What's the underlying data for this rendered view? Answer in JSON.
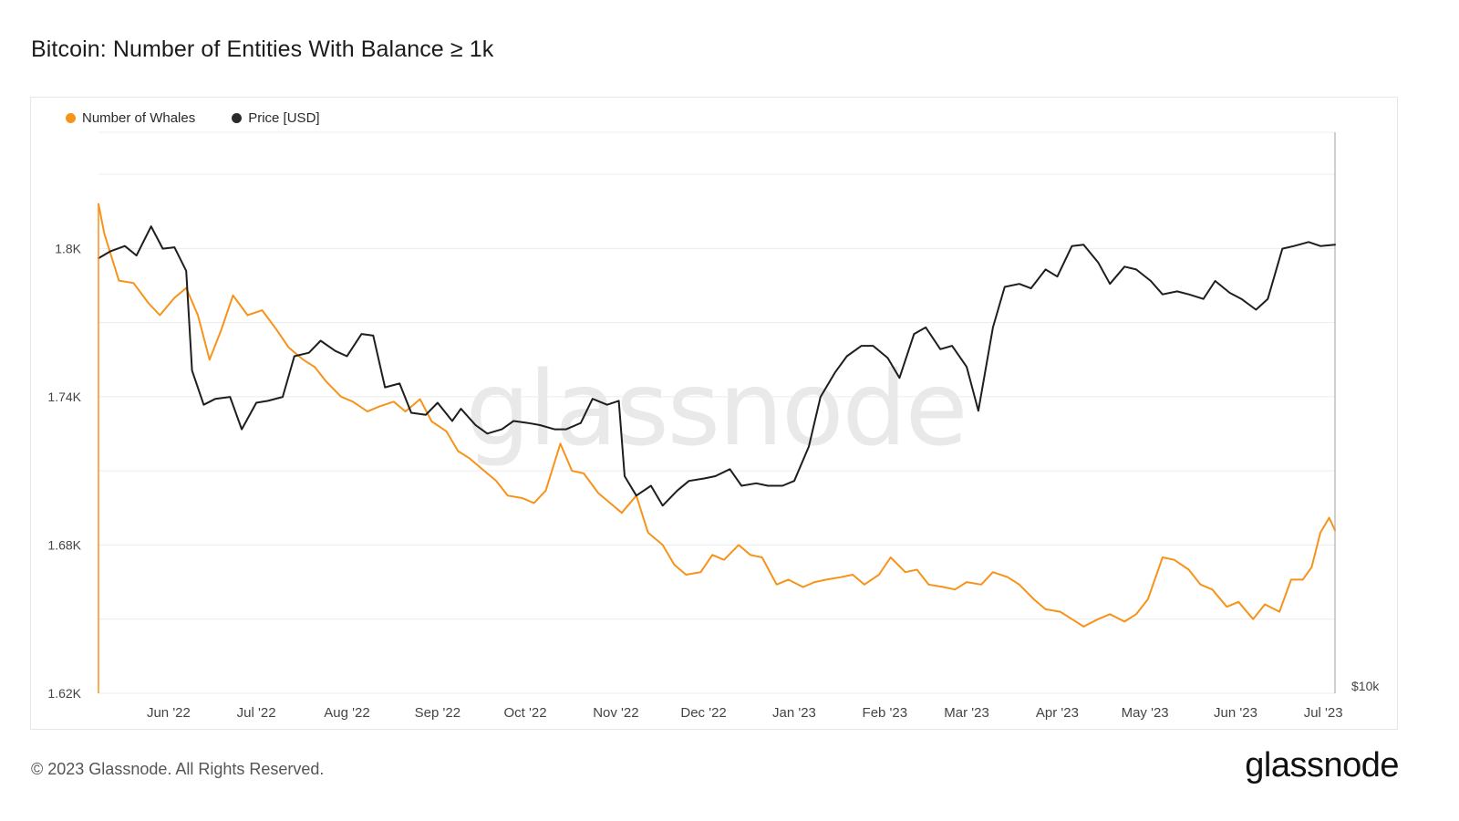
{
  "title": "Bitcoin: Number of Entities With Balance ≥ 1k",
  "footer": "© 2023 Glassnode. All Rights Reserved.",
  "logo": "glassnode",
  "watermark": "glassnode",
  "colors": {
    "whales": "#f7931a",
    "price": "#1e1e1e",
    "grid": "#ececec",
    "axis_text": "#444444"
  },
  "legend": [
    {
      "label": "Number of Whales",
      "color": "#f7931a"
    },
    {
      "label": "Price [USD]",
      "color": "#2a2a2a"
    }
  ],
  "chart_data": {
    "type": "line",
    "title": "Bitcoin: Number of Entities With Balance ≥ 1k",
    "y_left": {
      "ticks": [
        1620,
        1680,
        1740,
        1800
      ],
      "tick_labels": [
        "1.62K",
        "1.68K",
        "1.74K",
        "1.8K"
      ],
      "range": [
        1620,
        1847
      ]
    },
    "y_right": {
      "tick_labels": [
        "$10k"
      ],
      "scale": "log",
      "range": [
        10000,
        40000
      ]
    },
    "x": {
      "type": "date",
      "range": [
        "2022-05-13",
        "2023-07-10"
      ],
      "tick_dates": [
        "2022-06-06",
        "2022-07-06",
        "2022-08-06",
        "2022-09-06",
        "2022-10-06",
        "2022-11-06",
        "2022-12-06",
        "2023-01-06",
        "2023-02-06",
        "2023-03-06",
        "2023-04-06",
        "2023-05-06",
        "2023-06-06",
        "2023-07-06"
      ],
      "tick_labels": [
        "Jun '22",
        "Jul '22",
        "Aug '22",
        "Sep '22",
        "Oct '22",
        "Nov '22",
        "Dec '22",
        "Jan '23",
        "Feb '23",
        "Mar '23",
        "Apr '23",
        "May '23",
        "Jun '23",
        "Jul '23"
      ]
    },
    "grid": true,
    "legend_position": "top-left",
    "series": [
      {
        "name": "Number of Whales",
        "axis": "left",
        "color": "#f7931a",
        "dates": [
          "2022-05-13",
          "2022-05-15",
          "2022-05-20",
          "2022-05-25",
          "2022-05-30",
          "2022-06-03",
          "2022-06-08",
          "2022-06-12",
          "2022-06-16",
          "2022-06-20",
          "2022-06-24",
          "2022-06-28",
          "2022-07-03",
          "2022-07-08",
          "2022-07-13",
          "2022-07-17",
          "2022-07-22",
          "2022-07-26",
          "2022-07-30",
          "2022-08-04",
          "2022-08-08",
          "2022-08-13",
          "2022-08-17",
          "2022-08-22",
          "2022-08-26",
          "2022-08-31",
          "2022-09-04",
          "2022-09-09",
          "2022-09-13",
          "2022-09-17",
          "2022-09-22",
          "2022-09-26",
          "2022-09-30",
          "2022-10-05",
          "2022-10-09",
          "2022-10-13",
          "2022-10-18",
          "2022-10-22",
          "2022-10-26",
          "2022-10-31",
          "2022-11-04",
          "2022-11-08",
          "2022-11-13",
          "2022-11-17",
          "2022-11-22",
          "2022-11-26",
          "2022-11-30",
          "2022-12-05",
          "2022-12-09",
          "2022-12-13",
          "2022-12-18",
          "2022-12-22",
          "2022-12-26",
          "2022-12-31",
          "2023-01-04",
          "2023-01-09",
          "2023-01-13",
          "2023-01-17",
          "2023-01-22",
          "2023-01-26",
          "2023-01-30",
          "2023-02-04",
          "2023-02-08",
          "2023-02-13",
          "2023-02-17",
          "2023-02-21",
          "2023-02-26",
          "2023-03-02",
          "2023-03-06",
          "2023-03-11",
          "2023-03-15",
          "2023-03-20",
          "2023-03-24",
          "2023-03-29",
          "2023-04-02",
          "2023-04-07",
          "2023-04-11",
          "2023-04-15",
          "2023-04-20",
          "2023-04-24",
          "2023-04-29",
          "2023-05-03",
          "2023-05-07",
          "2023-05-12",
          "2023-05-16",
          "2023-05-21",
          "2023-05-25",
          "2023-05-29",
          "2023-06-03",
          "2023-06-07",
          "2023-06-12",
          "2023-06-16",
          "2023-06-21",
          "2023-06-25",
          "2023-06-29",
          "2023-07-02",
          "2023-07-05",
          "2023-07-08",
          "2023-07-10"
        ],
        "values": [
          1818,
          1806,
          1787,
          1786,
          1778,
          1773,
          1780,
          1784,
          1773,
          1755,
          1767,
          1781,
          1773,
          1775,
          1767,
          1760,
          1755,
          1752,
          1746,
          1740,
          1738,
          1734,
          1736,
          1738,
          1734,
          1739,
          1730,
          1726,
          1718,
          1715,
          1710,
          1706,
          1700,
          1699,
          1697,
          1702,
          1721,
          1710,
          1709,
          1701,
          1697,
          1693,
          1700,
          1685,
          1680,
          1672,
          1668,
          1669,
          1676,
          1674,
          1680,
          1676,
          1675,
          1664,
          1666,
          1663,
          1665,
          1666,
          1667,
          1668,
          1664,
          1668,
          1675,
          1669,
          1670,
          1664,
          1663,
          1662,
          1665,
          1664,
          1669,
          1667,
          1664,
          1658,
          1654,
          1653,
          1650,
          1647,
          1650,
          1652,
          1649,
          1652,
          1658,
          1675,
          1674,
          1670,
          1664,
          1662,
          1655,
          1657,
          1650,
          1656,
          1653,
          1666,
          1666,
          1671,
          1685,
          1691,
          1686
        ]
      },
      {
        "name": "Price [USD]",
        "axis": "right",
        "color": "#1e1e1e",
        "dates": [
          "2022-05-13",
          "2022-05-17",
          "2022-05-22",
          "2022-05-26",
          "2022-05-31",
          "2022-06-04",
          "2022-06-08",
          "2022-06-12",
          "2022-06-14",
          "2022-06-18",
          "2022-06-22",
          "2022-06-27",
          "2022-07-01",
          "2022-07-06",
          "2022-07-10",
          "2022-07-15",
          "2022-07-19",
          "2022-07-24",
          "2022-07-28",
          "2022-08-02",
          "2022-08-06",
          "2022-08-11",
          "2022-08-15",
          "2022-08-19",
          "2022-08-24",
          "2022-08-28",
          "2022-09-02",
          "2022-09-06",
          "2022-09-11",
          "2022-09-14",
          "2022-09-19",
          "2022-09-23",
          "2022-09-28",
          "2022-10-02",
          "2022-10-07",
          "2022-10-11",
          "2022-10-16",
          "2022-10-20",
          "2022-10-25",
          "2022-10-29",
          "2022-11-03",
          "2022-11-07",
          "2022-11-09",
          "2022-11-13",
          "2022-11-18",
          "2022-11-22",
          "2022-11-27",
          "2022-12-01",
          "2022-12-06",
          "2022-12-10",
          "2022-12-15",
          "2022-12-19",
          "2022-12-24",
          "2022-12-28",
          "2023-01-02",
          "2023-01-06",
          "2023-01-11",
          "2023-01-15",
          "2023-01-20",
          "2023-01-24",
          "2023-01-29",
          "2023-02-02",
          "2023-02-07",
          "2023-02-11",
          "2023-02-16",
          "2023-02-20",
          "2023-02-25",
          "2023-03-01",
          "2023-03-06",
          "2023-03-10",
          "2023-03-15",
          "2023-03-19",
          "2023-03-24",
          "2023-03-28",
          "2023-04-02",
          "2023-04-06",
          "2023-04-11",
          "2023-04-15",
          "2023-04-20",
          "2023-04-24",
          "2023-04-29",
          "2023-05-03",
          "2023-05-08",
          "2023-05-12",
          "2023-05-17",
          "2023-05-21",
          "2023-05-26",
          "2023-05-30",
          "2023-06-04",
          "2023-06-08",
          "2023-06-13",
          "2023-06-17",
          "2023-06-22",
          "2023-06-26",
          "2023-07-01",
          "2023-07-05",
          "2023-07-10"
        ],
        "values": [
          29300,
          29800,
          30200,
          29500,
          31700,
          30000,
          30100,
          28400,
          22200,
          20400,
          20700,
          20800,
          19200,
          20500,
          20600,
          20800,
          23000,
          23200,
          23900,
          23300,
          23000,
          24300,
          24200,
          21300,
          21500,
          20000,
          19900,
          20500,
          19600,
          20200,
          19400,
          19000,
          19200,
          19600,
          19500,
          19400,
          19200,
          19200,
          19500,
          20700,
          20400,
          20600,
          17100,
          16300,
          16700,
          15900,
          16500,
          16900,
          17000,
          17100,
          17400,
          16700,
          16800,
          16700,
          16700,
          16900,
          18400,
          20800,
          22100,
          23000,
          23600,
          23600,
          22900,
          21800,
          24300,
          24700,
          23400,
          23600,
          22400,
          20100,
          24700,
          27300,
          27500,
          27200,
          28500,
          28000,
          30200,
          30300,
          29000,
          27500,
          28700,
          28500,
          27700,
          26800,
          27000,
          26800,
          26500,
          27700,
          26900,
          26500,
          25800,
          26500,
          30000,
          30200,
          30500,
          30200,
          30300
        ]
      }
    ]
  }
}
